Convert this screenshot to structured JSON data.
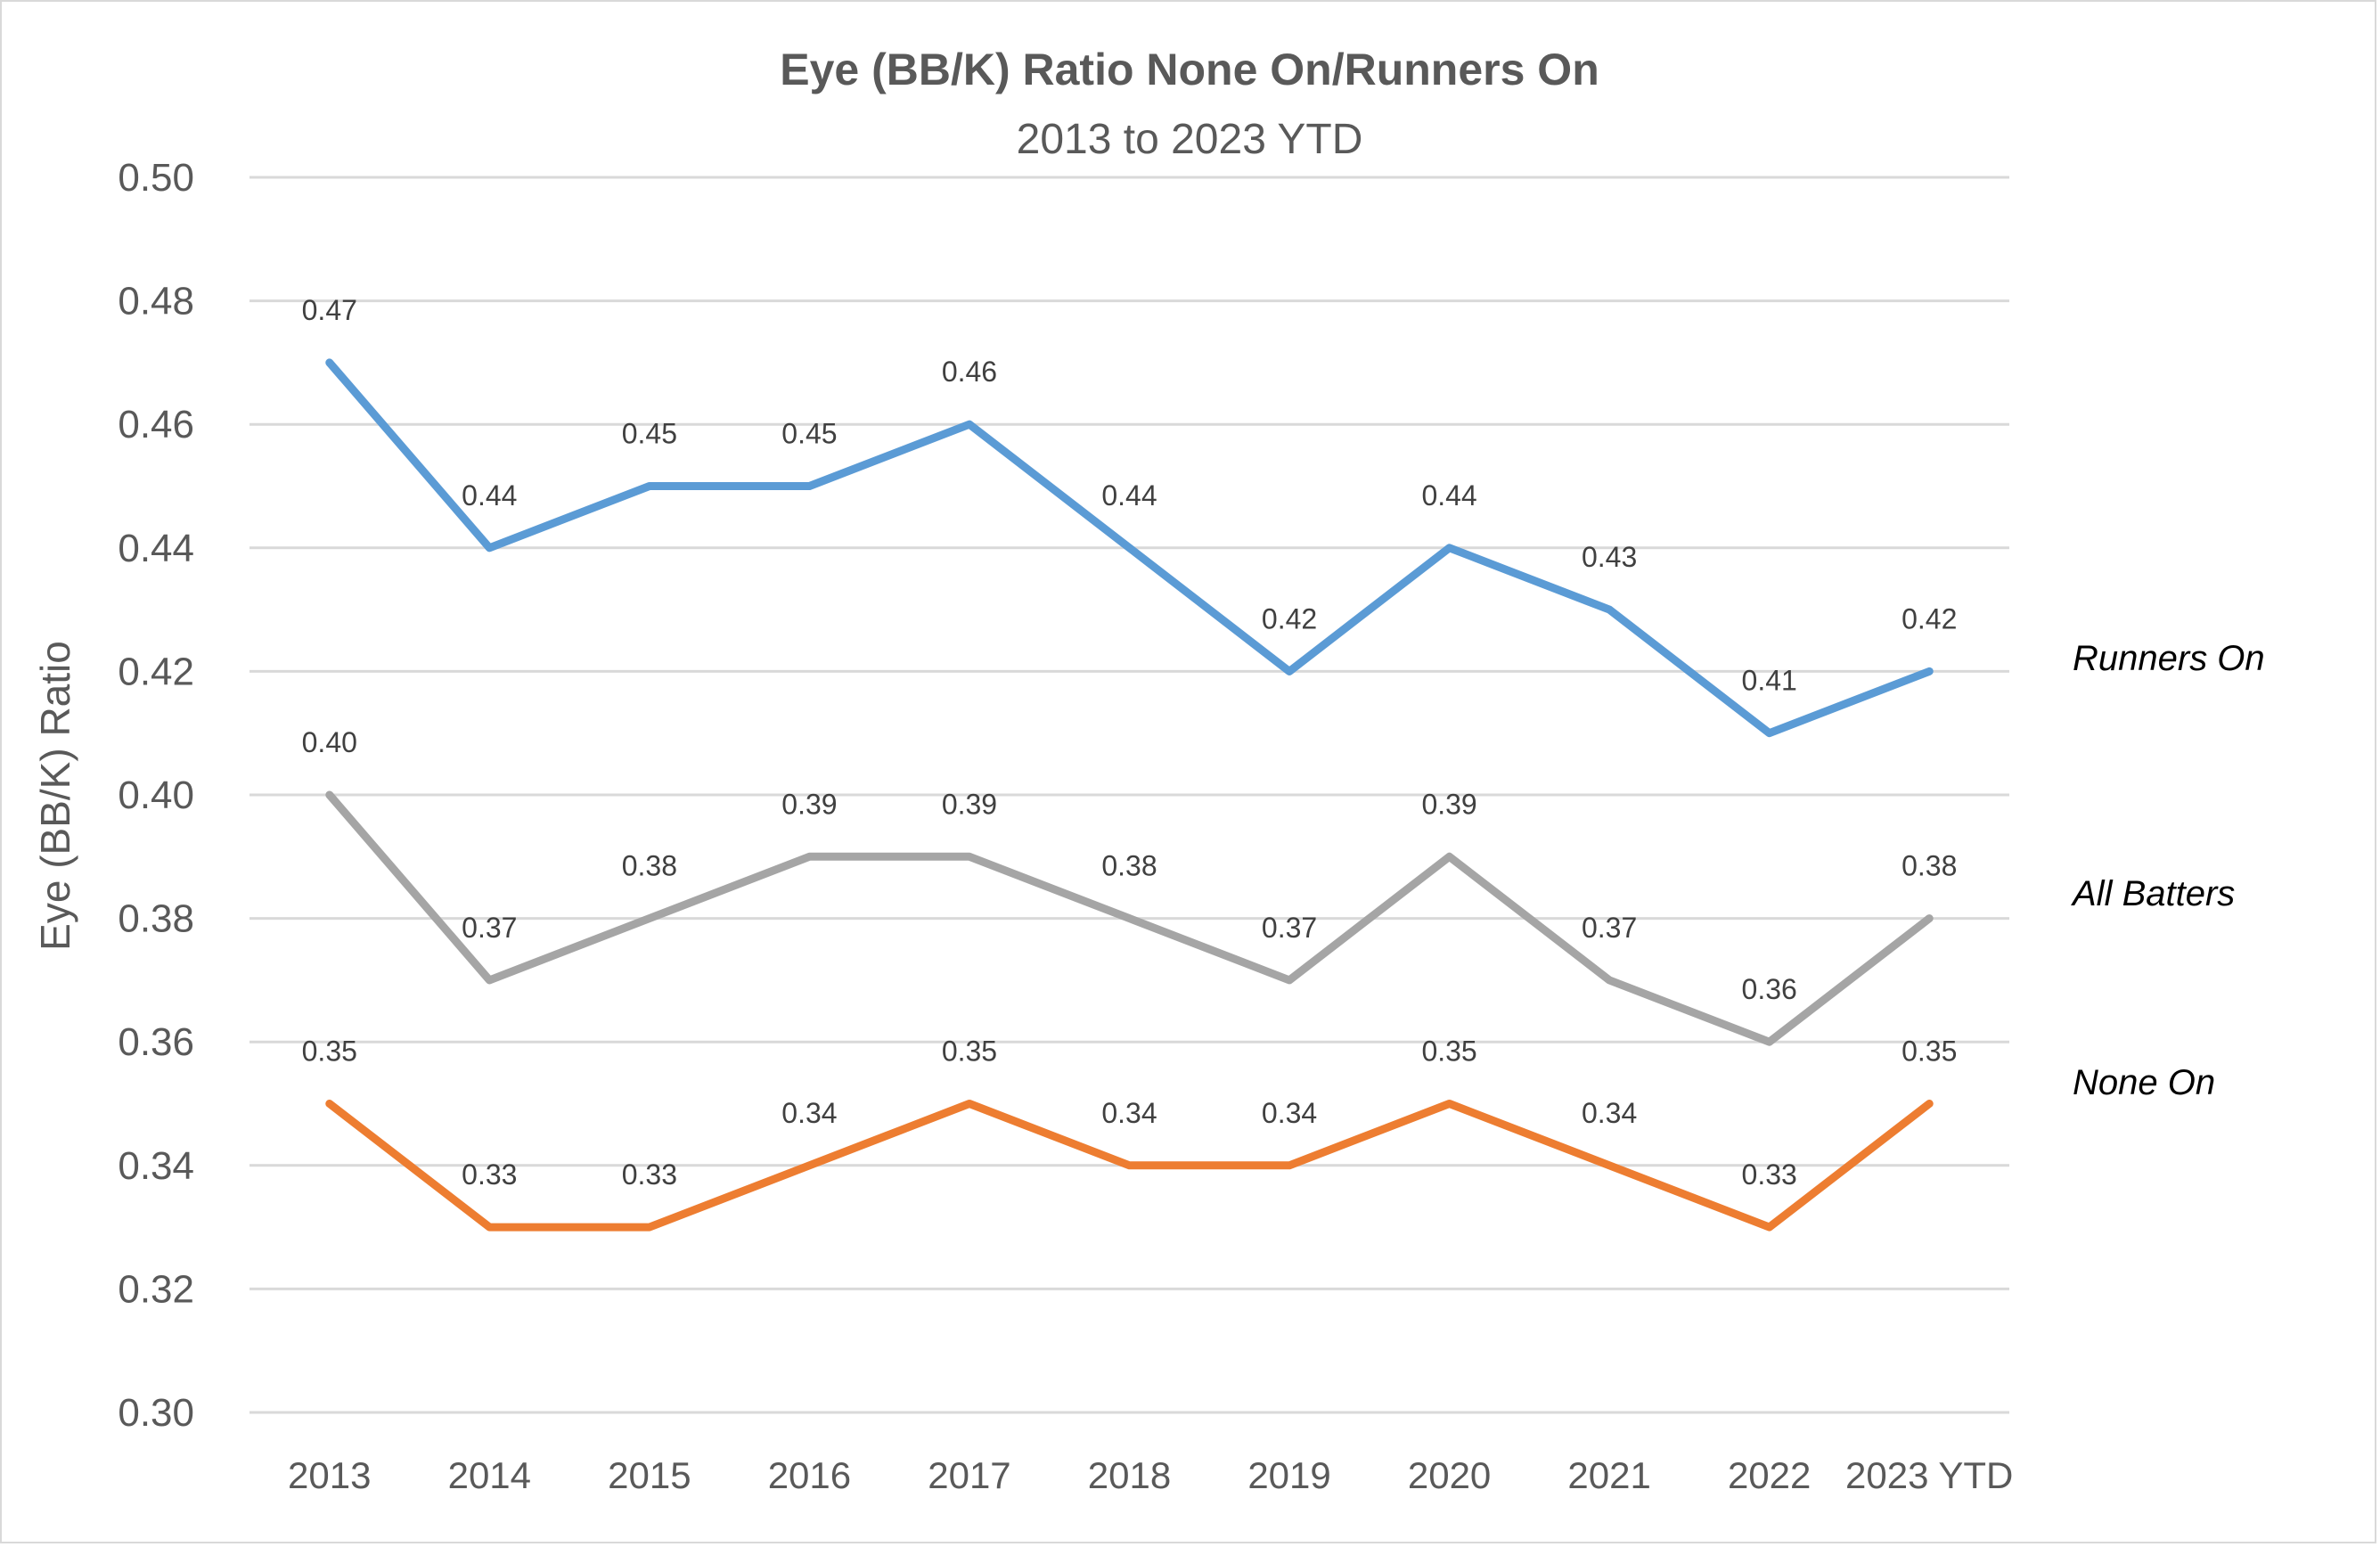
{
  "chart_data": {
    "type": "line",
    "title": "Eye (BB/K) Ratio None On/Runners On",
    "subtitle": "2013 to 2023 YTD",
    "xlabel": "",
    "ylabel": "Eye (BB/K) Ratio",
    "categories": [
      "2013",
      "2014",
      "2015",
      "2016",
      "2017",
      "2018",
      "2019",
      "2020",
      "2021",
      "2022",
      "2023 YTD"
    ],
    "ylim": [
      0.3,
      0.5
    ],
    "yticks": [
      "0.50",
      "0.48",
      "0.46",
      "0.44",
      "0.42",
      "0.40",
      "0.38",
      "0.36",
      "0.34",
      "0.32",
      "0.30"
    ],
    "ytick_values": [
      0.5,
      0.48,
      0.46,
      0.44,
      0.42,
      0.4,
      0.38,
      0.36,
      0.34,
      0.32,
      0.3
    ],
    "grid": true,
    "legend_placement": "right (inline labels)",
    "series": [
      {
        "name": "Runners On",
        "color": "#5b9bd5",
        "values": [
          0.47,
          0.44,
          0.45,
          0.45,
          0.46,
          0.44,
          0.42,
          0.44,
          0.43,
          0.41,
          0.42
        ],
        "labels": [
          "0.47",
          "0.44",
          "0.45",
          "0.45",
          "0.46",
          "0.44",
          "0.42",
          "0.44",
          "0.43",
          "0.41",
          "0.42"
        ]
      },
      {
        "name": "All Batters",
        "color": "#a5a5a5",
        "values": [
          0.4,
          0.37,
          0.38,
          0.39,
          0.39,
          0.38,
          0.37,
          0.39,
          0.37,
          0.36,
          0.38
        ],
        "labels": [
          "0.40",
          "0.37",
          "0.38",
          "0.39",
          "0.39",
          "0.38",
          "0.37",
          "0.39",
          "0.37",
          "0.36",
          "0.38"
        ]
      },
      {
        "name": "None On",
        "color": "#ed7d31",
        "values": [
          0.35,
          0.33,
          0.33,
          0.34,
          0.35,
          0.34,
          0.34,
          0.35,
          0.34,
          0.33,
          0.35
        ],
        "labels": [
          "0.35",
          "0.33",
          "0.33",
          "0.34",
          "0.35",
          "0.34",
          "0.34",
          "0.35",
          "0.34",
          "0.33",
          "0.35"
        ]
      }
    ]
  }
}
